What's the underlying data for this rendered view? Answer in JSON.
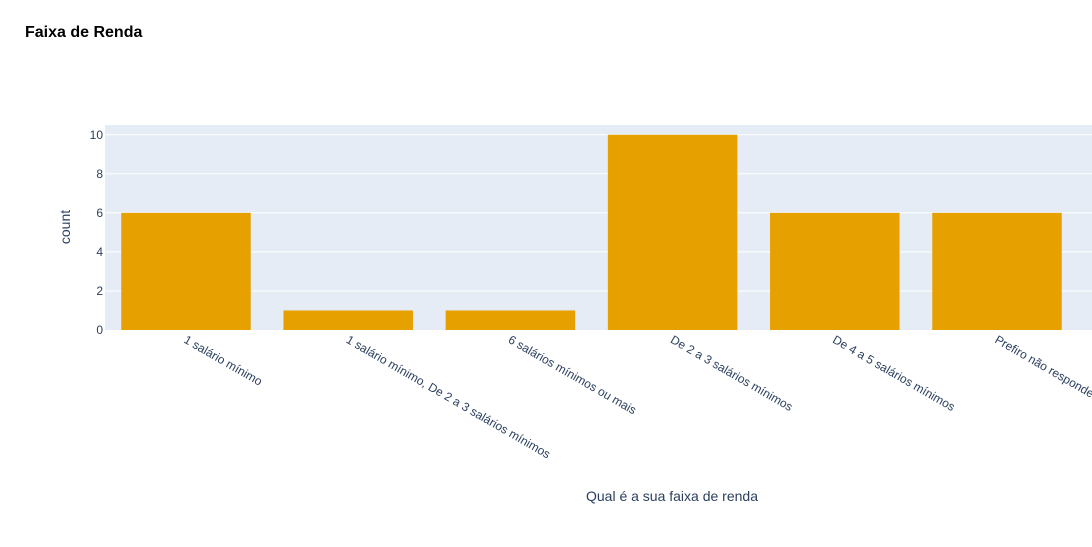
{
  "chart_data": {
    "type": "bar",
    "title": "Faixa de Renda",
    "xlabel": "Qual é a sua faixa de renda",
    "ylabel": "count",
    "categories": [
      "1 salário mínimo",
      "1 salário mínimo, De 2 a 3 salários mínimos",
      "6 salários mínimos ou mais",
      "De 2 a 3 salários mínimos",
      "De 4 a 5 salários mínimos",
      "Prefiro não responder"
    ],
    "values": [
      6,
      1,
      1,
      10,
      6,
      6
    ],
    "ylim": [
      0,
      10.5
    ],
    "yticks": [
      0,
      2,
      4,
      6,
      8,
      10
    ],
    "grid": true,
    "colors": {
      "bar": "#E6A100",
      "plot_bg": "#E5ECF6",
      "grid": "#ffffff",
      "text": "#2a3f5f"
    }
  }
}
